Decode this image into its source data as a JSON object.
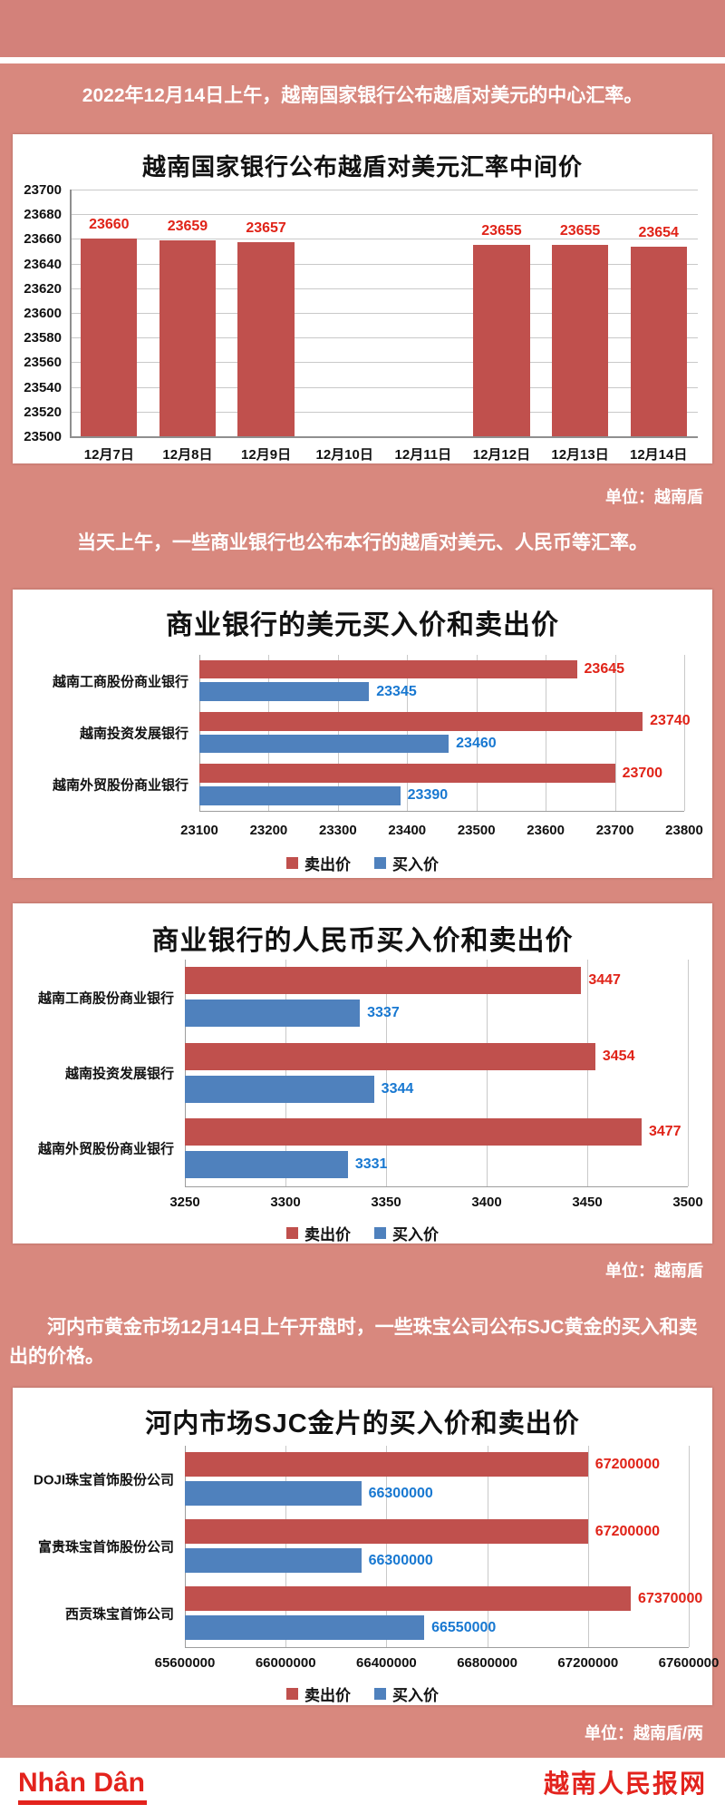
{
  "page": {
    "intro1": "2022年12月14日上午，越南国家银行公布越盾对美元的中心汇率。",
    "intro2": "当天上午，一些商业银行也公布本行的越盾对美元、人民币等汇率。",
    "intro3": "河内市黄金市场12月14日上午开盘时，一些珠宝公司公布SJC黄金的买入和卖出的价格。",
    "units": {
      "chart1": "单位：越南盾",
      "chart3": "单位：越南盾",
      "chart4": "单位：越南盾/两"
    },
    "footer": {
      "logo": "Nhân Dân",
      "site_name": "越南人民报网"
    }
  },
  "colors": {
    "background": "#d8887e",
    "top_band": "#d3817a",
    "sell_red": "#c0504d",
    "buy_blue": "#4f81bd",
    "label_red": "#e02318",
    "label_blue": "#1878d1",
    "gridline": "#c9c9c9",
    "axis": "#8f8f8f",
    "footer_red": "#e3231d"
  },
  "chart_data": [
    {
      "type": "bar",
      "title": "越南国家银行公布越盾对美元汇率中间价",
      "categories": [
        "12月7日",
        "12月8日",
        "12月9日",
        "12月10日",
        "12月11日",
        "12月12日",
        "12月13日",
        "12月14日"
      ],
      "values": [
        23660,
        23659,
        23657,
        null,
        null,
        23655,
        23655,
        23654
      ],
      "ylim": [
        23500,
        23700
      ],
      "ytick_step": 20,
      "xlabel": "",
      "ylabel": "",
      "grid": true,
      "unit": "单位：越南盾",
      "bar_color": "#c0504d",
      "value_label_color": "#e02318"
    },
    {
      "type": "bar-horizontal",
      "title": "商业银行的美元买入价和卖出价",
      "categories": [
        "越南工商股份商业银行",
        "越南投资发展银行",
        "越南外贸股份商业银行"
      ],
      "series": [
        {
          "name": "卖出价",
          "color": "#c0504d",
          "values": [
            23645,
            23740,
            23700
          ]
        },
        {
          "name": "买入价",
          "color": "#4f81bd",
          "values": [
            23345,
            23460,
            23390
          ]
        }
      ],
      "xlim": [
        23100,
        23800
      ],
      "xtick_step": 100,
      "grid": true,
      "legend_position": "bottom"
    },
    {
      "type": "bar-horizontal",
      "title": "商业银行的人民币买入价和卖出价",
      "categories": [
        "越南工商股份商业银行",
        "越南投资发展银行",
        "越南外贸股份商业银行"
      ],
      "series": [
        {
          "name": "卖出价",
          "color": "#c0504d",
          "values": [
            3447,
            3454,
            3477
          ]
        },
        {
          "name": "买入价",
          "color": "#4f81bd",
          "values": [
            3337,
            3344,
            3331
          ]
        }
      ],
      "xlim": [
        3250,
        3500
      ],
      "xtick_step": 50,
      "grid": true,
      "legend_position": "bottom",
      "unit": "单位：越南盾"
    },
    {
      "type": "bar-horizontal",
      "title": "河内市场SJC金片的买入价和卖出价",
      "categories": [
        "DOJI珠宝首饰股份公司",
        "富贵珠宝首饰股份公司",
        "西贡珠宝首饰公司"
      ],
      "series": [
        {
          "name": "卖出价",
          "color": "#c0504d",
          "values": [
            67200000,
            67200000,
            67370000
          ]
        },
        {
          "name": "买入价",
          "color": "#4f81bd",
          "values": [
            66300000,
            66300000,
            66550000
          ]
        }
      ],
      "xlim": [
        65600000,
        67600000
      ],
      "xtick_step": 400000,
      "grid": true,
      "legend_position": "bottom",
      "unit": "单位：越南盾/两"
    }
  ]
}
